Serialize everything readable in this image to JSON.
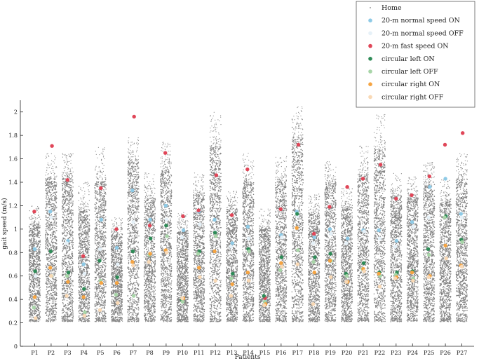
{
  "chart_data": {
    "type": "scatter",
    "title": "",
    "xlabel": "Patients",
    "ylabel": "gait speed (m/s)",
    "ylim": [
      0,
      2.1
    ],
    "yticks": [
      0,
      0.2,
      0.4,
      0.6,
      0.8,
      1,
      1.2,
      1.4,
      1.6,
      1.8,
      2
    ],
    "ytick_labels": [
      "0",
      "0.2",
      "0.4",
      "0.6",
      "0.8",
      "1",
      "1.2",
      "1.4",
      "1.6",
      "1.8",
      "2"
    ],
    "grid": false,
    "legend_position": "top-right",
    "categories": [
      "P1",
      "P2",
      "P3",
      "P4",
      "P5",
      "P6",
      "P7",
      "P8",
      "P9",
      "P10",
      "P11",
      "P12",
      "P13",
      "P14",
      "P15",
      "P16",
      "P17",
      "P18",
      "P19",
      "P20",
      "P21",
      "P22",
      "P23",
      "P24",
      "P25",
      "P26",
      "P27"
    ],
    "home_range": {
      "min": [
        0.21,
        0.21,
        0.21,
        0.21,
        0.21,
        0.21,
        0.21,
        0.21,
        0.21,
        0.21,
        0.21,
        0.21,
        0.21,
        0.21,
        0.21,
        0.21,
        0.21,
        0.21,
        0.21,
        0.21,
        0.21,
        0.21,
        0.21,
        0.21,
        0.21,
        0.21,
        0.21
      ],
      "max": [
        1.2,
        1.65,
        1.65,
        1.4,
        1.7,
        1.1,
        1.78,
        1.48,
        1.75,
        1.15,
        1.48,
        2.0,
        1.33,
        1.65,
        1.18,
        1.62,
        2.05,
        1.3,
        1.58,
        1.35,
        1.72,
        1.98,
        1.48,
        1.45,
        1.57,
        1.42,
        1.65
      ],
      "center": [
        0.62,
        0.85,
        0.95,
        0.55,
        0.65,
        0.58,
        1.05,
        0.7,
        0.9,
        0.55,
        0.8,
        0.95,
        0.75,
        0.75,
        0.55,
        0.85,
        1.1,
        0.7,
        0.9,
        0.75,
        0.8,
        0.9,
        0.75,
        0.8,
        0.9,
        0.75,
        0.85
      ]
    },
    "series": [
      {
        "name": "Home",
        "color": "#7f7f7f",
        "marker": "dot-cloud"
      },
      {
        "name": "20-m normal speed ON",
        "color": "#8ecae6",
        "values": [
          0.83,
          1.15,
          0.9,
          0.7,
          1.08,
          0.84,
          1.33,
          1.08,
          1.2,
          0.99,
          1.15,
          1.08,
          0.88,
          1.02,
          0.4,
          0.95,
          1.15,
          0.93,
          1.0,
          0.92,
          0.99,
          0.99,
          0.9,
          1.06,
          1.36,
          1.43,
          1.13
        ]
      },
      {
        "name": "20-m normal speed OFF",
        "color": "#e6f1f8",
        "values": [
          0.6,
          1.1,
          0.88,
          0.62,
          0.83,
          0.7,
          1.06,
          1.03,
          1.08,
          0.93,
          1.04,
          0.98,
          0.85,
          0.92,
          0.38,
          0.93,
          1.11,
          0.88,
          0.96,
          0.88,
          0.98,
          0.92,
          0.85,
          1.02,
          1.1,
          1.11,
          1.1
        ]
      },
      {
        "name": "20-m fast speed ON",
        "color": "#e04658",
        "values": [
          1.15,
          1.71,
          1.42,
          0.77,
          1.35,
          1.0,
          1.96,
          1.03,
          1.65,
          1.11,
          1.16,
          1.46,
          1.12,
          1.51,
          0.41,
          1.17,
          1.72,
          0.96,
          1.19,
          1.36,
          1.43,
          1.55,
          1.26,
          1.29,
          1.45,
          1.72,
          1.82
        ]
      },
      {
        "name": "circular left ON",
        "color": "#2e8b57",
        "values": [
          0.64,
          0.81,
          0.63,
          0.49,
          0.73,
          0.59,
          0.81,
          0.92,
          1.03,
          0.4,
          0.81,
          0.97,
          0.62,
          0.83,
          0.43,
          0.76,
          1.13,
          0.76,
          0.79,
          0.62,
          0.71,
          0.63,
          0.63,
          0.64,
          0.83,
          1.11,
          0.91
        ]
      },
      {
        "name": "circular left OFF",
        "color": "#a8d5a8",
        "values": [
          0.33,
          0.6,
          0.6,
          0.29,
          0.56,
          0.44,
          0.43,
          0.78,
          0.94,
          0.38,
          0.79,
          0.94,
          0.58,
          0.81,
          0.38,
          0.65,
          0.82,
          0.72,
          0.73,
          0.6,
          0.66,
          0.6,
          0.61,
          0.58,
          0.78,
          1.1,
          0.89
        ]
      },
      {
        "name": "circular right ON",
        "color": "#f5a442",
        "values": [
          0.42,
          0.67,
          0.55,
          0.42,
          0.54,
          0.54,
          0.72,
          0.79,
          0.82,
          0.41,
          0.67,
          0.81,
          0.53,
          0.63,
          0.36,
          0.71,
          1.01,
          0.63,
          0.73,
          0.55,
          0.66,
          0.62,
          0.59,
          0.63,
          0.6,
          0.86,
          0.69
        ]
      },
      {
        "name": "circular right OFF",
        "color": "#f9d9b5",
        "values": [
          0.24,
          0.6,
          0.43,
          0.26,
          0.31,
          0.37,
          0.69,
          0.72,
          0.8,
          0.41,
          0.59,
          0.56,
          0.43,
          0.56,
          0.35,
          0.68,
          0.7,
          0.36,
          0.59,
          0.55,
          0.64,
          0.51,
          0.58,
          0.56,
          0.59,
          0.75,
          0.68
        ]
      }
    ]
  }
}
